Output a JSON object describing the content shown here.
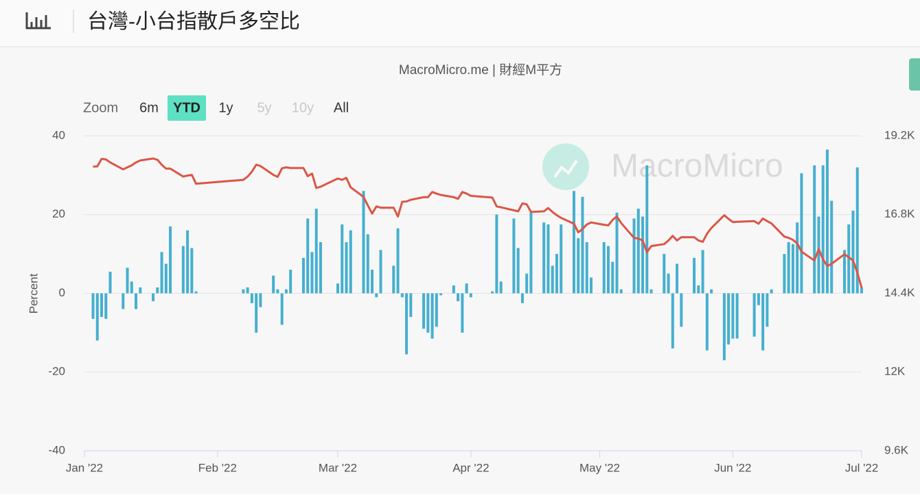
{
  "header": {
    "title": "台灣-小台指散戶多空比"
  },
  "chart_data": {
    "type": "combo",
    "subtitle": "MacroMicro.me | 財經M平方",
    "watermark": "MacroMicro",
    "zoom": {
      "label": "Zoom",
      "buttons": [
        "6m",
        "YTD",
        "1y",
        "5y",
        "10y",
        "All"
      ],
      "active": 1,
      "disabled": [
        3,
        4
      ]
    },
    "ylabel": "Percent",
    "grid": true,
    "xlim": [
      0,
      181
    ],
    "xticks": [
      {
        "value": 0,
        "label": "Jan '22"
      },
      {
        "value": 31,
        "label": "Feb '22"
      },
      {
        "value": 59,
        "label": "Mar '22"
      },
      {
        "value": 90,
        "label": "Apr '22"
      },
      {
        "value": 120,
        "label": "May '22"
      },
      {
        "value": 151,
        "label": "Jun '22"
      },
      {
        "value": 181,
        "label": "Jul '22"
      }
    ],
    "ylim": [
      -40,
      40
    ],
    "yticks": [
      -40,
      -20,
      0,
      20,
      40
    ],
    "y2lim": [
      9600,
      19200
    ],
    "y2ticks": [
      {
        "value": 9600,
        "label": "9.6K"
      },
      {
        "value": 12000,
        "label": "12K"
      },
      {
        "value": 14400,
        "label": "14.4K"
      },
      {
        "value": 16800,
        "label": "16.8K"
      },
      {
        "value": 19200,
        "label": "19.2K"
      }
    ],
    "x": [
      2,
      3,
      4,
      5,
      6,
      9,
      10,
      11,
      12,
      13,
      16,
      17,
      18,
      19,
      20,
      23,
      24,
      25,
      26,
      37,
      38,
      39,
      40,
      41,
      44,
      45,
      46,
      47,
      48,
      51,
      52,
      53,
      54,
      55,
      59,
      60,
      61,
      62,
      65,
      66,
      67,
      68,
      69,
      72,
      73,
      74,
      75,
      76,
      79,
      80,
      81,
      82,
      83,
      86,
      87,
      88,
      89,
      90,
      95,
      96,
      97,
      100,
      101,
      102,
      103,
      104,
      107,
      108,
      109,
      110,
      111,
      114,
      115,
      116,
      117,
      118,
      121,
      122,
      123,
      124,
      125,
      128,
      129,
      130,
      131,
      132,
      135,
      136,
      137,
      138,
      139,
      142,
      143,
      144,
      145,
      146,
      149,
      150,
      151,
      152,
      156,
      157,
      158,
      159,
      160,
      163,
      164,
      165,
      166,
      167,
      170,
      171,
      172,
      173,
      174,
      177,
      178,
      179,
      180,
      181
    ],
    "series": [
      {
        "type": "bar",
        "color": "#45afcf",
        "values": [
          -6.5,
          -12,
          -6,
          -6.5,
          5.5,
          -4,
          6.5,
          3,
          -4,
          1.5,
          -2,
          1.5,
          10.5,
          7.5,
          17,
          12,
          16,
          11.5,
          0.5,
          1,
          1.5,
          -2.5,
          -10,
          -3.5,
          4.5,
          1,
          -8,
          1,
          6,
          9,
          19,
          10.5,
          21.5,
          13,
          2.5,
          17.5,
          13,
          16,
          26,
          15,
          6,
          -1,
          11,
          7,
          16.5,
          -1,
          -15.5,
          -6,
          -9,
          -10,
          -11.5,
          -8.5,
          -0.5,
          2,
          -2,
          -10,
          2.5,
          -1,
          0.5,
          20,
          3,
          19,
          11.5,
          -2.5,
          5,
          20.5,
          18,
          17.5,
          7,
          10,
          17.5,
          26,
          14,
          24.5,
          13,
          4,
          13,
          12,
          8,
          20.5,
          1,
          19,
          21.5,
          19.5,
          32.5,
          1,
          10,
          5,
          -14,
          7.5,
          -8.5,
          9,
          2,
          11,
          -14.5,
          1,
          -17,
          -13,
          -11.5,
          -11.5,
          -11,
          -3,
          -14.5,
          -8.5,
          1,
          10,
          13,
          12.5,
          18,
          30.5,
          32.5,
          19.5,
          32.5,
          36.5,
          23.5,
          11,
          17.5,
          21,
          32,
          1.5
        ]
      },
      {
        "type": "line",
        "axis": "y2",
        "color": "#dc5545",
        "values": [
          18260,
          18270,
          18500,
          18480,
          18390,
          18180,
          18240,
          18300,
          18390,
          18450,
          18510,
          18470,
          18320,
          18200,
          18200,
          17960,
          17990,
          18010,
          17740,
          17860,
          17960,
          18110,
          18320,
          18280,
          18010,
          17950,
          18210,
          18240,
          18220,
          18220,
          17970,
          18050,
          17610,
          17650,
          17900,
          17860,
          17920,
          17630,
          17340,
          17080,
          16830,
          17050,
          17010,
          17010,
          16740,
          17190,
          17200,
          17250,
          17330,
          17330,
          17490,
          17440,
          17400,
          17330,
          17280,
          17490,
          17440,
          17370,
          17320,
          17050,
          17020,
          16930,
          16900,
          17140,
          17110,
          16880,
          16900,
          17000,
          16880,
          16780,
          16700,
          16520,
          16260,
          16360,
          16500,
          16560,
          16490,
          16470,
          16640,
          16740,
          16540,
          16090,
          16070,
          16010,
          15650,
          15840,
          15900,
          16010,
          16150,
          16010,
          16110,
          16110,
          16010,
          15970,
          16220,
          16390,
          16780,
          16670,
          16570,
          16580,
          16600,
          16520,
          16680,
          16600,
          16530,
          16130,
          16090,
          16030,
          15920,
          15670,
          15400,
          15750,
          15440,
          15230,
          15300,
          15590,
          15500,
          15400,
          15030,
          14570
        ]
      }
    ]
  }
}
